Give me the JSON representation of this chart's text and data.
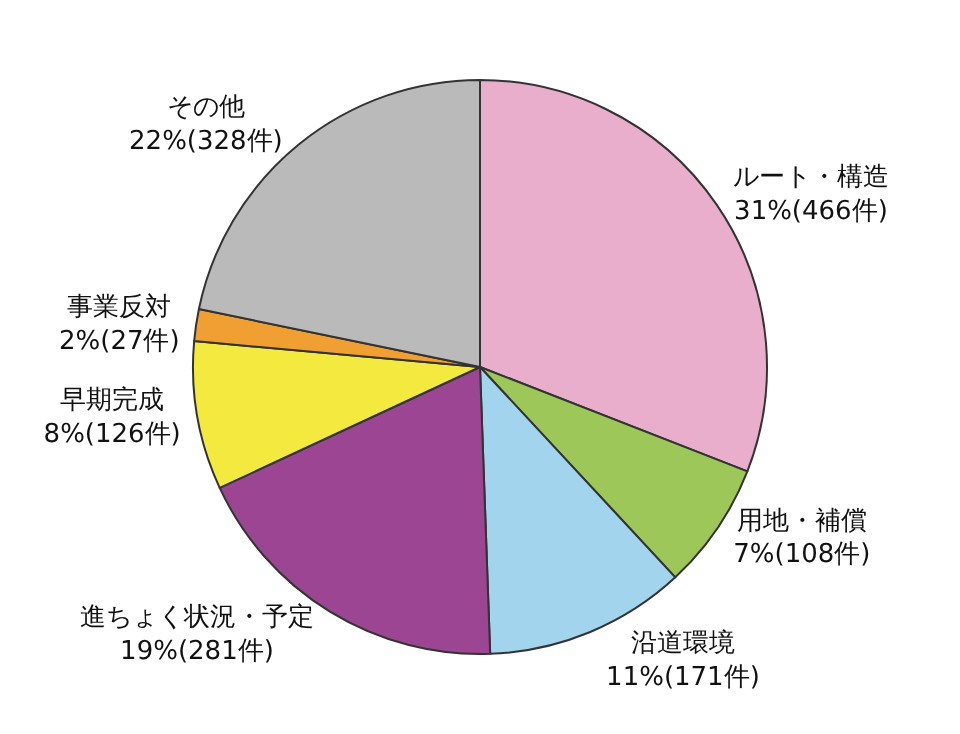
{
  "chart_data": {
    "type": "pie",
    "categories": [
      "ルート・構造",
      "用地・補償",
      "沿道環境",
      "進ちょく状況・予定",
      "早期完成",
      "事業反対",
      "その他"
    ],
    "values": [
      466,
      108,
      171,
      281,
      126,
      27,
      328
    ],
    "value_labels": [
      "31%(466件)",
      "7%(108件)",
      "11%(171件)",
      "19%(281件)",
      "8%(126件)",
      "2%(27件)",
      "22%(328件)"
    ],
    "colors": [
      "#e8aecb",
      "#9dc758",
      "#a2d4ee",
      "#9c4592",
      "#f3e93f",
      "#f0a033",
      "#bababa"
    ]
  }
}
